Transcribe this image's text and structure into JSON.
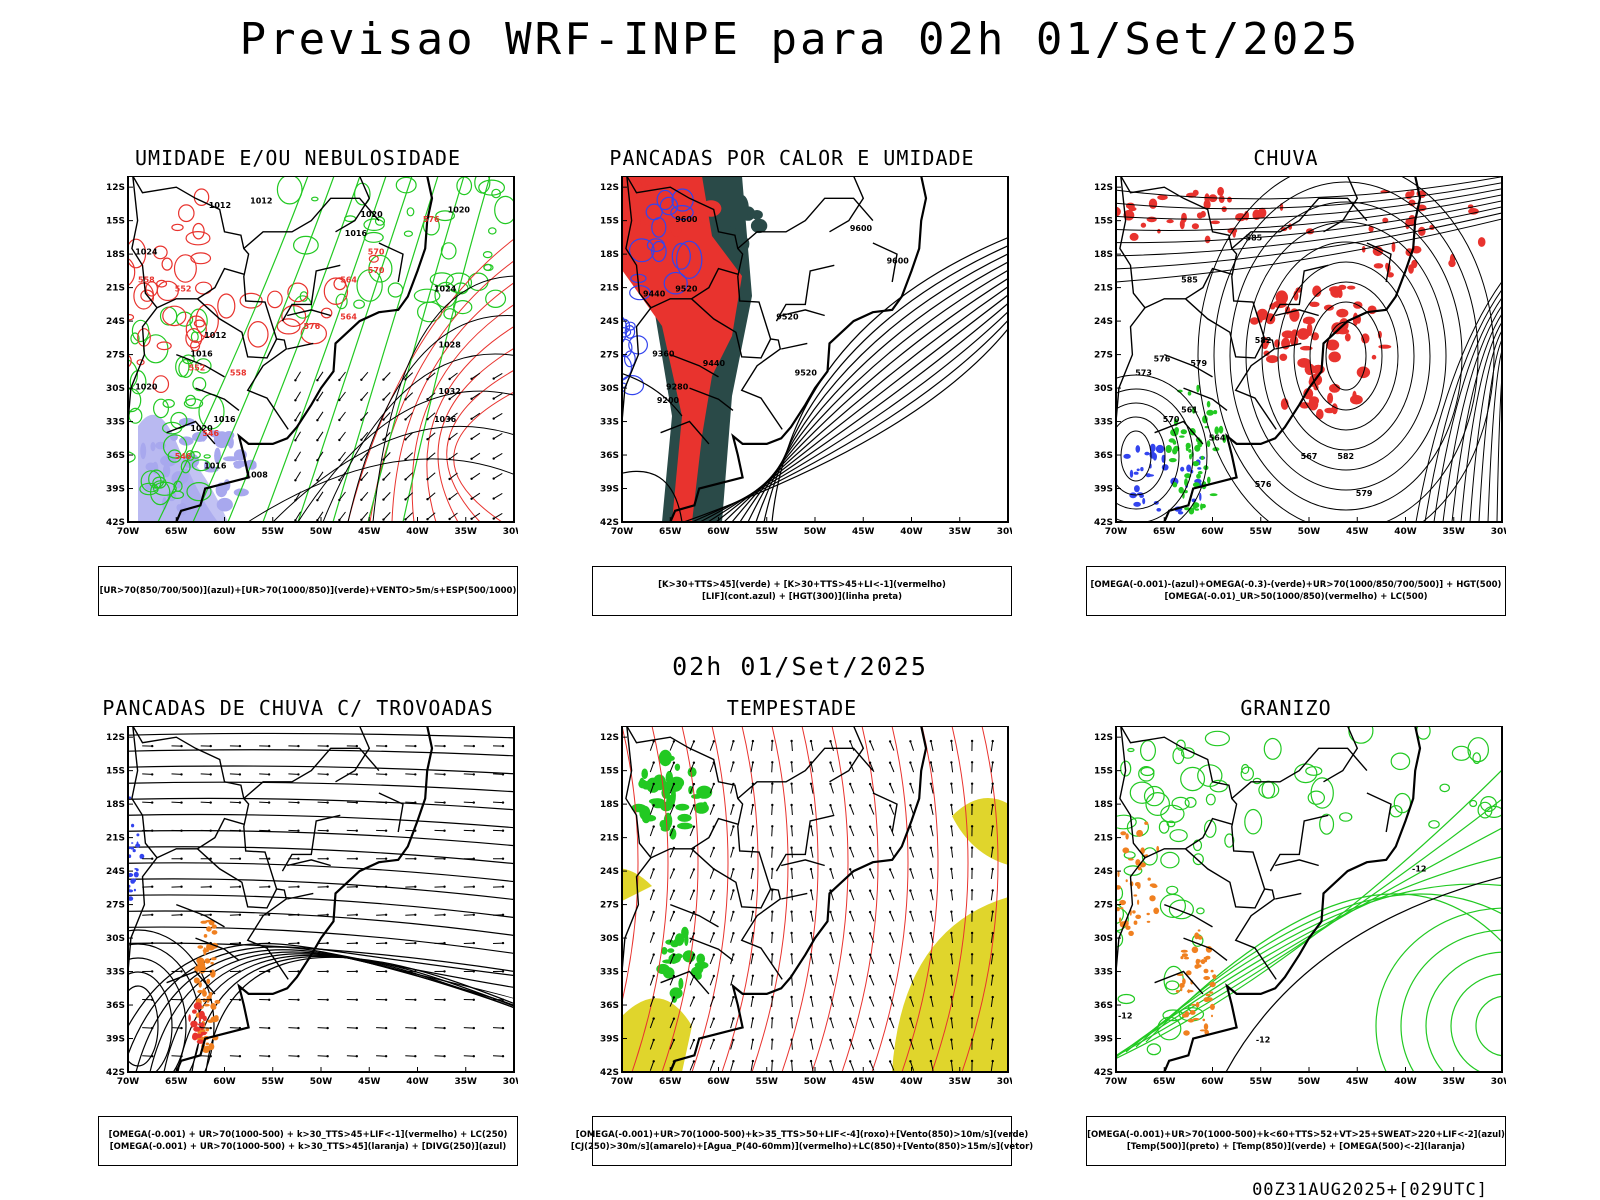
{
  "header": {
    "title": "Previsao WRF-INPE  para 02h 01/Set/2025"
  },
  "mid_title": "02h 01/Set/2025",
  "footer": "00Z31AUG2025+[029UTC]",
  "colors": {
    "red": "#e8332e",
    "green": "#22c922",
    "blue": "#3344ee",
    "purple": "#a8a8ee",
    "darkgreen": "#2a4a48",
    "yellow": "#e0d52c",
    "orange": "#f08020",
    "black": "#000000"
  },
  "chart_data": [
    {
      "type": "map",
      "id": "p1",
      "title": "UMIDADE E/OU NEBULOSIDADE",
      "legend": [
        "[UR>70(850/700/500)](azul)+[UR>70(1000/850)](verde)+VENTO>5m/s+ESP(500/1000)"
      ],
      "xlabels": [
        "70W",
        "65W",
        "60W",
        "55W",
        "50W",
        "45W",
        "40W",
        "35W",
        "30W"
      ],
      "ylabels": [
        "12S",
        "15S",
        "18S",
        "21S",
        "24S",
        "27S",
        "30S",
        "33S",
        "36S",
        "39S",
        "42S"
      ],
      "contour_labels": [
        "1016",
        "1020",
        "1020",
        "1024",
        "1028",
        "1032",
        "1036",
        "1012",
        "1012",
        "1016",
        "1016",
        "1020",
        "1020",
        "1016",
        "1008",
        "1012",
        "1024",
        "576",
        "570",
        "564",
        "576",
        "558",
        "552",
        "546",
        "570",
        "564",
        "558",
        "552",
        "546"
      ]
    },
    {
      "type": "map",
      "id": "p2",
      "title": "PANCADAS POR CALOR E UMIDADE",
      "legend": [
        "[K>30+TTS>45](verde) + [K>30+TTS>45+LI<-1](vermelho)",
        "[LIF](cont.azul) + [HGT(300)](linha preta)"
      ],
      "xlabels": [
        "70W",
        "65W",
        "60W",
        "55W",
        "50W",
        "45W",
        "40W",
        "35W",
        "30W"
      ],
      "ylabels": [
        "12S",
        "15S",
        "18S",
        "21S",
        "24S",
        "27S",
        "30S",
        "33S",
        "36S",
        "39S",
        "42S"
      ],
      "contour_labels": [
        "9600",
        "9600",
        "9600",
        "9520",
        "9520",
        "9520",
        "9440",
        "9440",
        "9360",
        "9280",
        "9200"
      ]
    },
    {
      "type": "map",
      "id": "p3",
      "title": "CHUVA",
      "legend": [
        "[OMEGA(-0.001)-(azul)+OMEGA(-0.3)-(verde)+UR>70(1000/850/700/500)] + HGT(500)",
        "[OMEGA(-0.01)_UR>50(1000/850)(vermelho) + LC(500)"
      ],
      "xlabels": [
        "70W",
        "65W",
        "60W",
        "55W",
        "50W",
        "45W",
        "40W",
        "35W",
        "30W"
      ],
      "ylabels": [
        "12S",
        "15S",
        "18S",
        "21S",
        "24S",
        "27S",
        "30S",
        "33S",
        "36S",
        "39S",
        "42S"
      ],
      "contour_labels": [
        "585",
        "585",
        "582",
        "579",
        "576",
        "573",
        "570",
        "567",
        "564",
        "561",
        "582",
        "579",
        "576"
      ]
    },
    {
      "type": "map",
      "id": "p4",
      "title": "PANCADAS DE CHUVA C/ TROVOADAS",
      "legend": [
        "[OMEGA(-0.001) + UR>70(1000-500) + k>30_TTS>45+LIF<-1](vermelho) + LC(250)",
        "[OMEGA(-0.001) + UR>70(1000-500) + k>30_TTS>45](laranja) + [DIVG(250)](azul)"
      ],
      "xlabels": [
        "70W",
        "65W",
        "60W",
        "55W",
        "50W",
        "45W",
        "40W",
        "35W",
        "30W"
      ],
      "ylabels": [
        "12S",
        "15S",
        "18S",
        "21S",
        "24S",
        "27S",
        "30S",
        "33S",
        "36S",
        "39S",
        "42S"
      ],
      "contour_labels": []
    },
    {
      "type": "map",
      "id": "p5",
      "title": "TEMPESTADE",
      "legend": [
        "[OMEGA(-0.001)+UR>70(1000-500)+k>35_TTS>50+LIF<-4](roxo)+[Vento(850)>10m/s](verde)",
        "[CJ(250)>30m/s](amarelo)+[Agua_P(40-60mm)](vermelho)+LC(850)+[Vento(850)>15m/s](vetor)"
      ],
      "xlabels": [
        "70W",
        "65W",
        "60W",
        "55W",
        "50W",
        "45W",
        "40W",
        "35W",
        "30W"
      ],
      "ylabels": [
        "12S",
        "15S",
        "18S",
        "21S",
        "24S",
        "27S",
        "30S",
        "33S",
        "36S",
        "39S",
        "42S"
      ],
      "contour_labels": []
    },
    {
      "type": "map",
      "id": "p6",
      "title": "GRANIZO",
      "legend": [
        "[OMEGA(-0.001)+UR>70(1000-500)+k<60+TTS>52+VT>25+SWEAT>220+LIF<-2](azul)",
        "[Temp(500)](preto) + [Temp(850)](verde) + [OMEGA(500)<-2](laranja)"
      ],
      "xlabels": [
        "70W",
        "65W",
        "60W",
        "55W",
        "50W",
        "45W",
        "40W",
        "35W",
        "30W"
      ],
      "ylabels": [
        "12S",
        "15S",
        "18S",
        "21S",
        "24S",
        "27S",
        "30S",
        "33S",
        "36S",
        "39S",
        "42S"
      ],
      "contour_labels": [
        "-12",
        "-12",
        "-12"
      ]
    }
  ]
}
